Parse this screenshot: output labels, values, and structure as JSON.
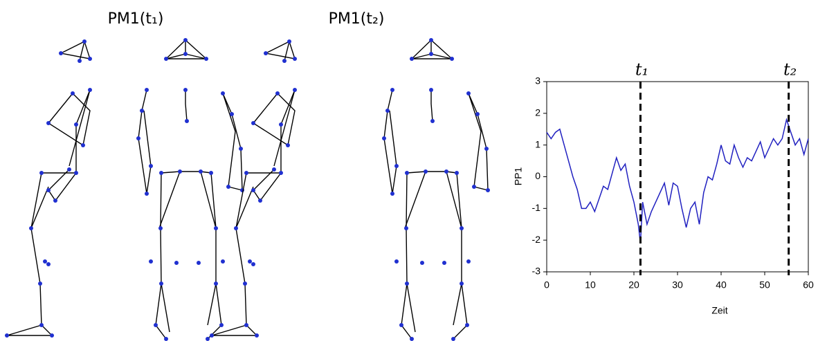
{
  "figure_labels": [
    "PM1(t₁)",
    "PM1(t₂)"
  ],
  "chart_data": {
    "type": "line",
    "x_label": "Zeit",
    "y_label": "PP1",
    "x": [
      0,
      1,
      2,
      3,
      4,
      5,
      6,
      7,
      8,
      9,
      10,
      11,
      12,
      13,
      14,
      15,
      16,
      17,
      18,
      19,
      20,
      21,
      21.5,
      22,
      23,
      24,
      25,
      26,
      27,
      28,
      29,
      30,
      31,
      32,
      33,
      34,
      35,
      36,
      37,
      38,
      39,
      40,
      41,
      42,
      43,
      44,
      45,
      46,
      47,
      48,
      49,
      50,
      51,
      52,
      53,
      54,
      55,
      56,
      57,
      58,
      59,
      60
    ],
    "values": [
      1.4,
      1.2,
      1.4,
      1.5,
      1.0,
      0.5,
      0.0,
      -0.4,
      -1.0,
      -1.0,
      -0.8,
      -1.1,
      -0.7,
      -0.3,
      -0.4,
      0.1,
      0.6,
      0.2,
      0.4,
      -0.3,
      -0.8,
      -1.5,
      -2.1,
      -0.8,
      -1.5,
      -1.1,
      -0.8,
      -0.5,
      -0.2,
      -0.9,
      -0.2,
      -0.3,
      -1.0,
      -1.6,
      -1.0,
      -0.8,
      -1.5,
      -0.5,
      0.0,
      -0.1,
      0.4,
      1.0,
      0.5,
      0.4,
      1.0,
      0.6,
      0.3,
      0.6,
      0.5,
      0.8,
      1.1,
      0.6,
      0.9,
      1.2,
      1.0,
      1.2,
      1.8,
      1.4,
      1.0,
      1.2,
      0.7,
      1.2
    ],
    "color": "#2020c0",
    "markers": [
      {
        "x": 21.5,
        "label": "t₁"
      },
      {
        "x": 55.5,
        "label": "t₂"
      }
    ],
    "xlim": [
      0,
      60
    ],
    "xticks": [
      0,
      10,
      20,
      30,
      40,
      50,
      60
    ],
    "ylim": [
      -3,
      3
    ],
    "yticks": [
      -3,
      -2,
      -1,
      0,
      1,
      2,
      3
    ]
  }
}
